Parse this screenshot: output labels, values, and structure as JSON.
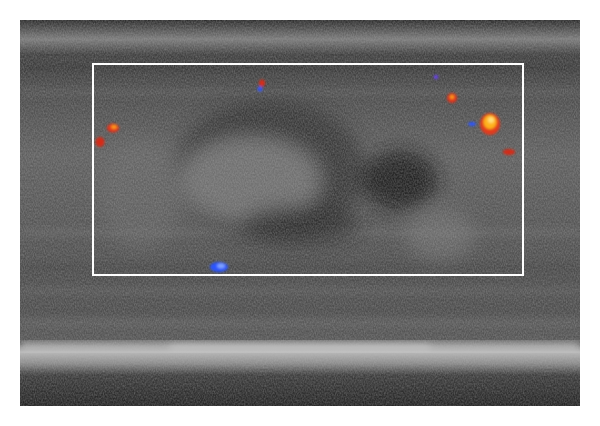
{
  "image": {
    "modality": "ultrasound",
    "mode": "color-doppler",
    "colors": {
      "background": "#ffffff",
      "roi_box": "#ffffff",
      "flow_toward": "#e23a1a",
      "flow_toward_high": "#ffb21a",
      "flow_away": "#2a55ff",
      "tissue_mid": "#6a6a6a",
      "tissue_dark": "#1e1e1e"
    },
    "regions": [
      {
        "name": "roi-box"
      },
      {
        "name": "hypoechoic-lesion"
      },
      {
        "name": "hyperechoic-band"
      },
      {
        "name": "doppler-signals"
      }
    ]
  }
}
